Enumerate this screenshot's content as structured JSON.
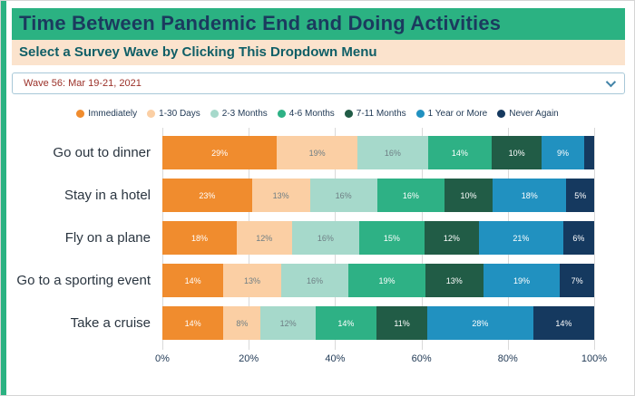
{
  "title": "Time Between Pandemic End and Doing Activities",
  "subtitle": "Select a Survey Wave by Clicking This Dropdown Menu",
  "dropdown": {
    "value": "Wave 56: Mar 19-21, 2021"
  },
  "colors": {
    "accent_green": "#2bb282",
    "title_text": "#1b3a5e",
    "subtitle_bg": "#fbe3cd",
    "subtitle_text": "#0f5e66",
    "dropdown_text": "#9b3028"
  },
  "chart_data": {
    "type": "bar",
    "orientation": "horizontal",
    "stacked": true,
    "categories": [
      "Go out to dinner",
      "Stay in a hotel",
      "Fly on a plane",
      "Go to a sporting event",
      "Take a cruise"
    ],
    "series": [
      {
        "name": "Immediately",
        "color": "#f08c2e",
        "light": false,
        "values": [
          29,
          23,
          18,
          14,
          14
        ]
      },
      {
        "name": "1-30 Days",
        "color": "#fbcfa4",
        "light": true,
        "values": [
          19,
          13,
          12,
          13,
          8
        ]
      },
      {
        "name": "2-3 Months",
        "color": "#a6d9cb",
        "light": true,
        "values": [
          16,
          16,
          16,
          16,
          12
        ]
      },
      {
        "name": "4-6 Months",
        "color": "#2eb185",
        "light": false,
        "values": [
          14,
          16,
          15,
          19,
          14
        ]
      },
      {
        "name": "7-11 Months",
        "color": "#215c46",
        "light": false,
        "values": [
          10,
          10,
          12,
          13,
          11
        ]
      },
      {
        "name": "1 Year or More",
        "color": "#2191c0",
        "light": false,
        "values": [
          9,
          18,
          21,
          19,
          28
        ]
      },
      {
        "name": "Never Again",
        "color": "#15395f",
        "light": false,
        "values": [
          3,
          5,
          6,
          7,
          14
        ]
      }
    ],
    "x_ticks": [
      "0%",
      "20%",
      "40%",
      "60%",
      "80%",
      "100%"
    ],
    "xlim": [
      0,
      100
    ],
    "label_suffix": "%",
    "hide_label_below": 5,
    "grid": true,
    "legend_position": "top"
  }
}
